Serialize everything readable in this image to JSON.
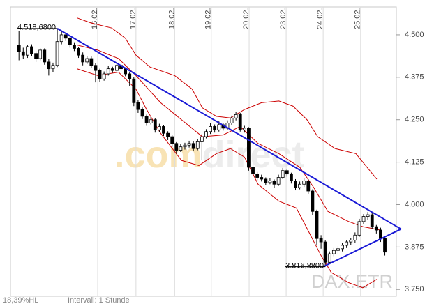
{
  "chart_data": {
    "type": "candlestick",
    "xlim": [
      -2,
      88.7
    ],
    "ylim": [
      3730,
      4582
    ],
    "xticks": [
      {
        "value": 18.5,
        "label": "16.02."
      },
      {
        "value": 27.5,
        "label": "17.02."
      },
      {
        "value": 36.6,
        "label": "18.02."
      },
      {
        "value": 45.2,
        "label": "19.02."
      },
      {
        "value": 54.1,
        "label": "20.02."
      },
      {
        "value": 62.8,
        "label": "23.02."
      },
      {
        "value": 71.5,
        "label": "24.02."
      },
      {
        "value": 80.3,
        "label": "25.02."
      }
    ],
    "yticks": [
      {
        "value": 3750,
        "label": "3.750"
      },
      {
        "value": 3875,
        "label": "3.875"
      },
      {
        "value": 4000,
        "label": "4.000"
      },
      {
        "value": 4125,
        "label": "4.125"
      },
      {
        "value": 4250,
        "label": "4.250"
      },
      {
        "value": 4375,
        "label": "4.375"
      },
      {
        "value": 4500,
        "label": "4.500"
      }
    ],
    "grid": true,
    "up_color": "#ffffff",
    "down_color": "#000000",
    "ohlc": [
      [
        4470,
        4512,
        4425,
        4450
      ],
      [
        4450,
        4462,
        4430,
        4440
      ],
      [
        4440,
        4470,
        4432,
        4465
      ],
      [
        4465,
        4472,
        4438,
        4445
      ],
      [
        4445,
        4452,
        4420,
        4430
      ],
      [
        4430,
        4460,
        4425,
        4455
      ],
      [
        4455,
        4460,
        4412,
        4420
      ],
      [
        4420,
        4428,
        4380,
        4400
      ],
      [
        4400,
        4418,
        4390,
        4410
      ],
      [
        4410,
        4518.68,
        4405,
        4480
      ],
      [
        4480,
        4510,
        4472,
        4500
      ],
      [
        4500,
        4505,
        4482,
        4490
      ],
      [
        4490,
        4496,
        4462,
        4470
      ],
      [
        4470,
        4478,
        4452,
        4460
      ],
      [
        4460,
        4465,
        4432,
        4440
      ],
      [
        4440,
        4448,
        4410,
        4420
      ],
      [
        4420,
        4438,
        4414,
        4430
      ],
      [
        4430,
        4436,
        4402,
        4410
      ],
      [
        4410,
        4416,
        4360,
        4395
      ],
      [
        4395,
        4400,
        4362,
        4370
      ],
      [
        4370,
        4392,
        4365,
        4385
      ],
      [
        4385,
        4408,
        4380,
        4400
      ],
      [
        4400,
        4406,
        4388,
        4395
      ],
      [
        4395,
        4418,
        4390,
        4410
      ],
      [
        4410,
        4414,
        4392,
        4400
      ],
      [
        4400,
        4404,
        4378,
        4385
      ],
      [
        4385,
        4390,
        4350,
        4370
      ],
      [
        4370,
        4375,
        4290,
        4300
      ],
      [
        4300,
        4308,
        4270,
        4280
      ],
      [
        4280,
        4286,
        4252,
        4260
      ],
      [
        4260,
        4265,
        4232,
        4240
      ],
      [
        4240,
        4258,
        4236,
        4250
      ],
      [
        4250,
        4254,
        4212,
        4220
      ],
      [
        4220,
        4238,
        4214,
        4230
      ],
      [
        4230,
        4234,
        4202,
        4210
      ],
      [
        4210,
        4216,
        4190,
        4200
      ],
      [
        4200,
        4205,
        4170,
        4180
      ],
      [
        4180,
        4184,
        4150,
        4160
      ],
      [
        4160,
        4178,
        4155,
        4170
      ],
      [
        4170,
        4182,
        4162,
        4175
      ],
      [
        4175,
        4188,
        4168,
        4180
      ],
      [
        4180,
        4186,
        4158,
        4165
      ],
      [
        4165,
        4192,
        4160,
        4185
      ],
      [
        4185,
        4208,
        4130,
        4200
      ],
      [
        4200,
        4222,
        4195,
        4215
      ],
      [
        4215,
        4240,
        4208,
        4230
      ],
      [
        4230,
        4236,
        4212,
        4220
      ],
      [
        4220,
        4245,
        4215,
        4235
      ],
      [
        4235,
        4240,
        4218,
        4225
      ],
      [
        4225,
        4248,
        4220,
        4240
      ],
      [
        4240,
        4262,
        4235,
        4255
      ],
      [
        4255,
        4272,
        4248,
        4265
      ],
      [
        4265,
        4270,
        4215,
        4220
      ],
      [
        4220,
        4232,
        4212,
        4225
      ],
      [
        4225,
        4228,
        4100,
        4110
      ],
      [
        4110,
        4118,
        4082,
        4090
      ],
      [
        4090,
        4096,
        4072,
        4080
      ],
      [
        4080,
        4088,
        4068,
        4075
      ],
      [
        4075,
        4080,
        4058,
        4065
      ],
      [
        4065,
        4078,
        4060,
        4070
      ],
      [
        4070,
        4074,
        4050,
        4060
      ],
      [
        4060,
        4088,
        4055,
        4080
      ],
      [
        4080,
        4108,
        4075,
        4100
      ],
      [
        4100,
        4104,
        4082,
        4090
      ],
      [
        4090,
        4094,
        4062,
        4070
      ],
      [
        4070,
        4075,
        4042,
        4050
      ],
      [
        4050,
        4068,
        4045,
        4060
      ],
      [
        4060,
        4078,
        4052,
        4070
      ],
      [
        4070,
        4075,
        4032,
        4040
      ],
      [
        4040,
        4045,
        3970,
        3980
      ],
      [
        3980,
        3985,
        3880,
        3900
      ],
      [
        3900,
        3910,
        3870,
        3890
      ],
      [
        3890,
        3895,
        3816.88,
        3830
      ],
      [
        3830,
        3862,
        3825,
        3855
      ],
      [
        3855,
        3872,
        3848,
        3865
      ],
      [
        3865,
        3878,
        3855,
        3870
      ],
      [
        3870,
        3888,
        3862,
        3880
      ],
      [
        3880,
        3896,
        3872,
        3890
      ],
      [
        3890,
        3902,
        3880,
        3895
      ],
      [
        3895,
        3918,
        3888,
        3910
      ],
      [
        3910,
        3958,
        3905,
        3950
      ],
      [
        3950,
        3972,
        3942,
        3965
      ],
      [
        3965,
        3978,
        3955,
        3970
      ],
      [
        3970,
        3975,
        3928,
        3935
      ],
      [
        3935,
        3940,
        3915,
        3925
      ],
      [
        3925,
        3932,
        3890,
        3900
      ],
      [
        3900,
        3905,
        3850,
        3860
      ]
    ],
    "bands": [
      {
        "color": "#cc0000",
        "x": [
          13.6,
          16.9,
          21.8,
          25,
          27.5,
          30.8,
          36.6,
          40.7,
          43.1,
          46.4,
          49.7,
          53,
          57,
          61.1,
          64.4,
          67.7,
          70.2,
          74.3,
          79.2,
          84.1
        ],
        "values": [
          4550,
          4535,
          4520,
          4490,
          4440,
          4405,
          4380,
          4340,
          4285,
          4260,
          4255,
          4280,
          4300,
          4305,
          4290,
          4250,
          4200,
          4165,
          4150,
          4075
        ]
      },
      {
        "color": "#cc0000",
        "x": [
          13.6,
          18.5,
          23.4,
          27.5,
          33.3,
          38.2,
          43.1,
          48,
          52,
          56.2,
          61.1,
          66,
          69.3,
          72.6,
          77.5,
          80.8,
          84.9
        ],
        "values": [
          4470,
          4455,
          4430,
          4380,
          4300,
          4250,
          4200,
          4205,
          4230,
          4180,
          4150,
          4110,
          4050,
          3980,
          3950,
          3935,
          3925
        ]
      },
      {
        "color": "#cc0000",
        "x": [
          13.6,
          18.5,
          23.4,
          27.5,
          30,
          33.3,
          38.2,
          42.3,
          46.4,
          49.7,
          53,
          56.2,
          61.1,
          65.2,
          67.7,
          71,
          73.4,
          77.5,
          80.8,
          84.1
        ],
        "values": [
          4400,
          4380,
          4390,
          4340,
          4280,
          4210,
          4130,
          4115,
          4150,
          4165,
          4140,
          4060,
          4010,
          3990,
          3930,
          3850,
          3800,
          3770,
          3755,
          3780
        ]
      }
    ],
    "trendlines": [
      {
        "color": "#1a1ad6",
        "x": [
          9,
          89.8
        ],
        "values": [
          4518.68,
          3928
        ]
      },
      {
        "color": "#1a1ad6",
        "x": [
          71.5,
          89.8
        ],
        "values": [
          3816.88,
          3928
        ]
      }
    ],
    "annotations": [
      {
        "label": "4.518,6800",
        "x": 9,
        "value": 4518.68
      },
      {
        "label": "3.816,8800",
        "x": 72,
        "value": 3816.88
      }
    ],
    "watermark": {
      "prefix": ".com",
      "suffix": "direct",
      "instrument": "DAX.ETR"
    },
    "footer": {
      "range": "18,39%HL",
      "interval": "Intervall: 1 Stunde"
    }
  }
}
